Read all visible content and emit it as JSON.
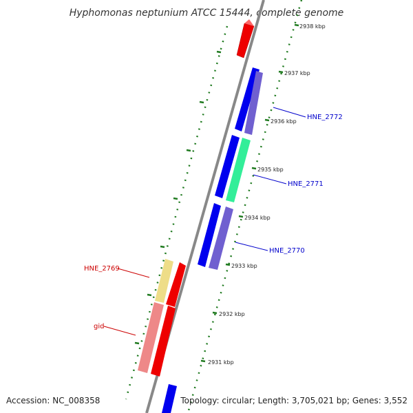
{
  "title": "Hyphomonas neptunium ATCC 15444, complete genome",
  "accession": "Accession: NC_008358",
  "summary": "Topology: circular; Length: 3,705,021 bp; Genes: 3,552",
  "ticks": [
    {
      "label": "2938 kbp",
      "kbp": 2938
    },
    {
      "label": "2937 kbp",
      "kbp": 2937
    },
    {
      "label": "2936 kbp",
      "kbp": 2936
    },
    {
      "label": "2935 kbp",
      "kbp": 2935
    },
    {
      "label": "2934 kbp",
      "kbp": 2934
    },
    {
      "label": "2933 kbp",
      "kbp": 2933
    },
    {
      "label": "2932 kbp",
      "kbp": 2932
    },
    {
      "label": "2931 kbp",
      "kbp": 2931
    }
  ],
  "genes": [
    {
      "label": "HNE_2772",
      "color": "#0000cc"
    },
    {
      "label": "HNE_2771",
      "color": "#0000cc"
    },
    {
      "label": "HNE_2770",
      "color": "#0000cc"
    },
    {
      "label": "HNE_2769",
      "color": "#cc0000"
    },
    {
      "label": "gid",
      "color": "#cc0000"
    }
  ],
  "colors": {
    "backbone": "#888888",
    "tick_green": "#1f7a1f",
    "blue_gene": "#0000ee",
    "purple_gene": "#7060d0",
    "teal_gene": "#33ee99",
    "red_gene": "#ee0000",
    "pink_gene": "#ee8888",
    "yellow_gene": "#eedd88"
  }
}
